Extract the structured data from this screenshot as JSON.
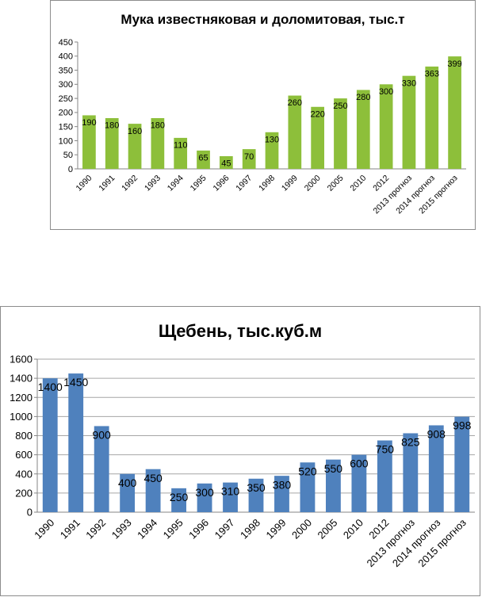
{
  "chart_data": [
    {
      "type": "bar",
      "title": "Мука известняковая и доломитовая, тыс.т",
      "categories": [
        "1990",
        "1991",
        "1992",
        "1993",
        "1994",
        "1995",
        "1996",
        "1997",
        "1998",
        "1999",
        "2000",
        "2005",
        "2010",
        "2012",
        "2013 прогноз",
        "2014 прогноз",
        "2015 прогноз"
      ],
      "values": [
        190,
        180,
        160,
        180,
        110,
        65,
        45,
        70,
        130,
        260,
        220,
        250,
        280,
        300,
        330,
        363,
        399
      ],
      "data_labels": [
        "190",
        "180",
        "160",
        "180",
        "110",
        "65",
        "45",
        "70",
        "130",
        "260",
        "220",
        "250",
        "280",
        "300",
        "330",
        "363",
        "399"
      ],
      "ylim": [
        0,
        450
      ],
      "yticks": [
        "0",
        "50",
        "100",
        "150",
        "200",
        "250",
        "300",
        "350",
        "400",
        "450"
      ],
      "grid": false,
      "legend": "none",
      "bar_color": "#8DBF3A",
      "xlabel": "",
      "ylabel": ""
    },
    {
      "type": "bar",
      "title": "Щебень, тыс.куб.м",
      "categories": [
        "1990",
        "1991",
        "1992",
        "1993",
        "1994",
        "1995",
        "1996",
        "1997",
        "1998",
        "1999",
        "2000",
        "2005",
        "2010",
        "2012",
        "2013 прогноз",
        "2014 прогноз",
        "2015 прогноз"
      ],
      "values": [
        1400,
        1450,
        900,
        400,
        450,
        250,
        300,
        310,
        350,
        380,
        520,
        550,
        600,
        750,
        825,
        908,
        998
      ],
      "data_labels": [
        "1400",
        "1450",
        "900",
        "400",
        "450",
        "250",
        "300",
        "310",
        "350",
        "380",
        "520",
        "550",
        "600",
        "750",
        "825",
        "908",
        "998"
      ],
      "ylim": [
        0,
        1600
      ],
      "yticks": [
        "0",
        "200",
        "400",
        "600",
        "800",
        "1000",
        "1200",
        "1400",
        "1600"
      ],
      "grid": true,
      "legend": "none",
      "bar_color": "#4F81BD",
      "xlabel": "",
      "ylabel": ""
    }
  ]
}
